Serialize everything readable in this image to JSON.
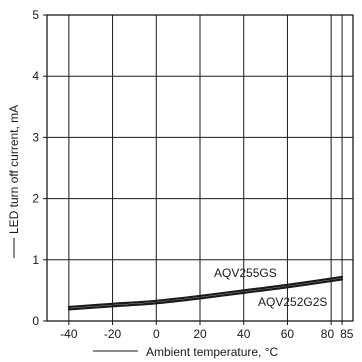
{
  "chart_data": {
    "type": "line",
    "xlabel": "Ambient temperature, °C",
    "ylabel": "LED turn off current, mA",
    "xlim": [
      -50,
      90
    ],
    "ylim": [
      0,
      5
    ],
    "x_ticks": [
      -40,
      -20,
      0,
      20,
      40,
      60,
      80,
      85
    ],
    "x_tick_labels": [
      "-40",
      "-20",
      "0",
      "20",
      "40",
      "60",
      "80",
      "85"
    ],
    "y_ticks": [
      0,
      1,
      2,
      3,
      4,
      5
    ],
    "y_tick_labels": [
      "0",
      "1",
      "2",
      "3",
      "4",
      "5"
    ],
    "grid": true,
    "series": [
      {
        "name": "AQV255GS",
        "x": [
          -40,
          -20,
          0,
          20,
          40,
          60,
          85
        ],
        "y": [
          0.23,
          0.28,
          0.33,
          0.41,
          0.5,
          0.59,
          0.72
        ]
      },
      {
        "name": "AQV252G2S",
        "x": [
          -40,
          -20,
          0,
          20,
          40,
          60,
          85
        ],
        "y": [
          0.19,
          0.24,
          0.29,
          0.37,
          0.46,
          0.55,
          0.68
        ]
      }
    ]
  }
}
